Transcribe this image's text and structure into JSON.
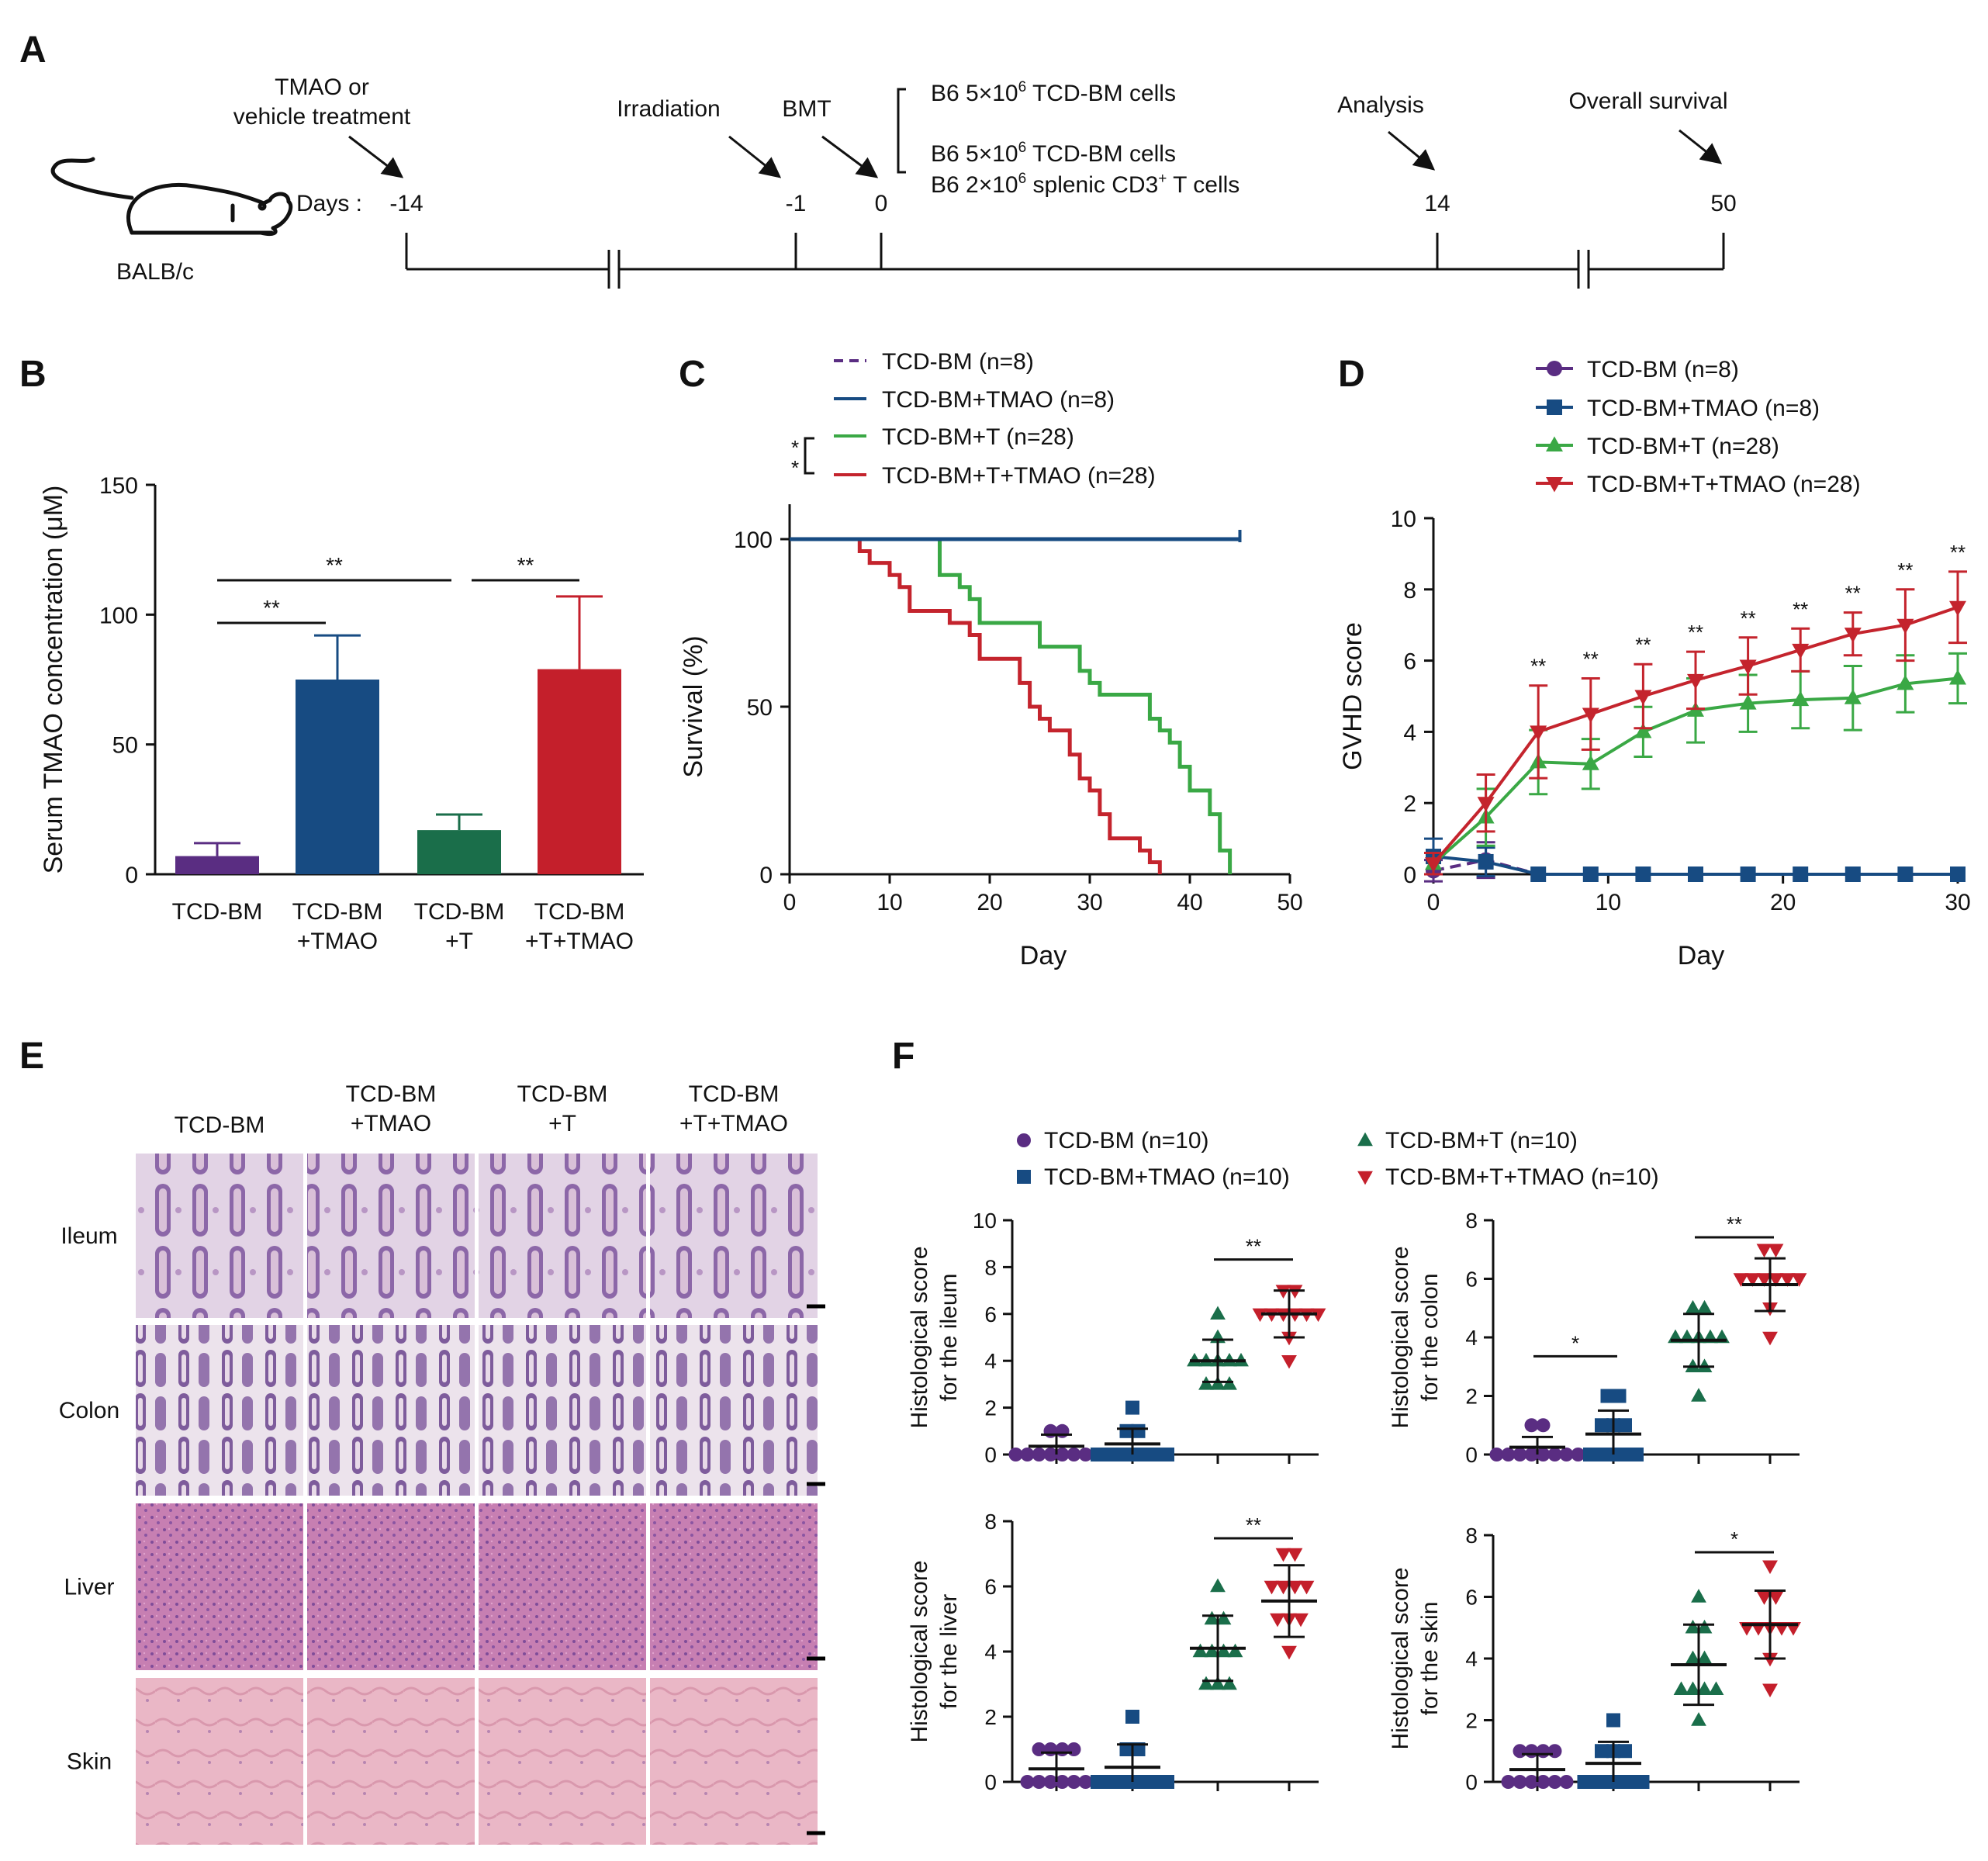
{
  "panels": {
    "A": "A",
    "B": "B",
    "C": "C",
    "D": "D",
    "E": "E",
    "F": "F"
  },
  "timeline": {
    "mouse_label": "BALB/c",
    "days_label": "Days :",
    "ticks": [
      "-14",
      "-1",
      "0",
      "14",
      "50"
    ],
    "ann_tmao_1": "TMAO or",
    "ann_tmao_2": "vehicle treatment",
    "ann_irradiation": "Irradiation",
    "ann_bmt": "BMT",
    "ann_analysis": "Analysis",
    "ann_survival": "Overall survival",
    "b6_line1": {
      "pre": "B6 5×10",
      "sup": "6",
      "post": " TCD-BM cells"
    },
    "b6_line2": {
      "pre": "B6 5×10",
      "sup": "6",
      "post": " TCD-BM cells"
    },
    "b6_line3": {
      "pre": "B6 2×10",
      "sup": "6",
      "mid": " splenic CD3",
      "sup2": "+",
      "post": " T cells"
    }
  },
  "colors": {
    "purple": "#5a2d82",
    "blue": "#174b82",
    "green": "#1a6e4a",
    "red": "#c41f2b",
    "green_light": "#3aa845",
    "red_line": "#c4242d"
  },
  "chart_data": [
    {
      "id": "B",
      "type": "bar",
      "ylabel": "Serum TMAO concentration (μM)",
      "ylim": [
        0,
        150
      ],
      "yticks": [
        0,
        50,
        100,
        150
      ],
      "categories": [
        [
          "TCD-BM"
        ],
        [
          "TCD-BM",
          "+TMAO"
        ],
        [
          "TCD-BM",
          "+T"
        ],
        [
          "TCD-BM",
          "+T+TMAO"
        ]
      ],
      "values": [
        7,
        75,
        17,
        79
      ],
      "errors": [
        5,
        17,
        6,
        28
      ],
      "significance": [
        {
          "from": 0,
          "to": 1,
          "label": "**"
        },
        {
          "from": 0,
          "to": 2,
          "label": "**"
        },
        {
          "from": 2,
          "to": 3,
          "label": "**"
        }
      ]
    },
    {
      "id": "C",
      "type": "line",
      "xlabel": "Day",
      "ylabel": "Survival (%)",
      "xlim": [
        0,
        50
      ],
      "ylim": [
        0,
        100
      ],
      "xticks": [
        0,
        10,
        20,
        30,
        40,
        50
      ],
      "yticks": [
        0,
        50,
        100
      ],
      "significance": "**",
      "series": [
        {
          "name": "TCD-BM (n=8)",
          "style": "dashed",
          "steps": [
            [
              0,
              100
            ],
            [
              45,
              100
            ]
          ]
        },
        {
          "name": "TCD-BM+TMAO (n=8)",
          "style": "solid",
          "steps": [
            [
              0,
              100
            ],
            [
              45,
              100
            ]
          ]
        },
        {
          "name": "TCD-BM+T (n=28)",
          "style": "solid",
          "steps": [
            [
              0,
              100
            ],
            [
              15,
              100
            ],
            [
              15,
              89.3
            ],
            [
              17,
              89.3
            ],
            [
              17,
              85.7
            ],
            [
              18,
              85.7
            ],
            [
              18,
              82.1
            ],
            [
              19,
              82.1
            ],
            [
              19,
              75
            ],
            [
              25,
              75
            ],
            [
              25,
              67.9
            ],
            [
              29,
              67.9
            ],
            [
              29,
              60.7
            ],
            [
              30,
              60.7
            ],
            [
              30,
              57.1
            ],
            [
              31,
              57.1
            ],
            [
              31,
              53.6
            ],
            [
              36,
              53.6
            ],
            [
              36,
              46.4
            ],
            [
              37,
              46.4
            ],
            [
              37,
              42.9
            ],
            [
              38,
              42.9
            ],
            [
              38,
              39.3
            ],
            [
              39,
              39.3
            ],
            [
              39,
              32.1
            ],
            [
              40,
              32.1
            ],
            [
              40,
              25
            ],
            [
              42,
              25
            ],
            [
              42,
              17.9
            ],
            [
              43,
              17.9
            ],
            [
              43,
              7.1
            ],
            [
              44,
              7.1
            ],
            [
              44,
              0
            ]
          ]
        },
        {
          "name": "TCD-BM+T+TMAO (n=28)",
          "style": "solid",
          "steps": [
            [
              0,
              100
            ],
            [
              7,
              100
            ],
            [
              7,
              96.4
            ],
            [
              8,
              96.4
            ],
            [
              8,
              92.9
            ],
            [
              10,
              92.9
            ],
            [
              10,
              89.3
            ],
            [
              11,
              89.3
            ],
            [
              11,
              85.7
            ],
            [
              12,
              85.7
            ],
            [
              12,
              78.6
            ],
            [
              16,
              78.6
            ],
            [
              16,
              75
            ],
            [
              18,
              75
            ],
            [
              18,
              71.4
            ],
            [
              19,
              71.4
            ],
            [
              19,
              64.3
            ],
            [
              23,
              64.3
            ],
            [
              23,
              57.1
            ],
            [
              24,
              57.1
            ],
            [
              24,
              50
            ],
            [
              25,
              50
            ],
            [
              25,
              46.4
            ],
            [
              26,
              46.4
            ],
            [
              26,
              42.9
            ],
            [
              28,
              42.9
            ],
            [
              28,
              35.7
            ],
            [
              29,
              35.7
            ],
            [
              29,
              28.6
            ],
            [
              30,
              28.6
            ],
            [
              30,
              25
            ],
            [
              31,
              25
            ],
            [
              31,
              17.9
            ],
            [
              32,
              17.9
            ],
            [
              32,
              10.7
            ],
            [
              35,
              10.7
            ],
            [
              35,
              7.1
            ],
            [
              36,
              7.1
            ],
            [
              36,
              3.6
            ],
            [
              37,
              3.6
            ],
            [
              37,
              0
            ]
          ]
        }
      ]
    },
    {
      "id": "D",
      "type": "line",
      "xlabel": "Day",
      "ylabel": "GVHD score",
      "xlim": [
        0,
        30
      ],
      "ylim": [
        0,
        10
      ],
      "xticks": [
        0,
        10,
        20,
        30
      ],
      "yticks": [
        0,
        2,
        4,
        6,
        8,
        10
      ],
      "x": [
        0,
        3,
        6,
        9,
        12,
        15,
        18,
        21,
        24,
        27,
        30
      ],
      "significance_label": "**",
      "significance_x": [
        6,
        9,
        12,
        15,
        18,
        21,
        24,
        27,
        30
      ],
      "series": [
        {
          "name": "TCD-BM (n=8)",
          "marker": "circle",
          "values": [
            0.1,
            0.4,
            0,
            0,
            0,
            0,
            0,
            0,
            0,
            0,
            0
          ],
          "errors": [
            0.3,
            0.5,
            0,
            0,
            0,
            0,
            0,
            0,
            0,
            0,
            0
          ]
        },
        {
          "name": "TCD-BM+TMAO (n=8)",
          "marker": "square",
          "values": [
            0.5,
            0.35,
            0,
            0,
            0,
            0,
            0,
            0,
            0,
            0,
            0
          ],
          "errors": [
            0.5,
            0.4,
            0,
            0,
            0,
            0,
            0,
            0,
            0,
            0,
            0
          ]
        },
        {
          "name": "TCD-BM+T (n=28)",
          "marker": "triangle-up",
          "values": [
            0.3,
            1.6,
            3.15,
            3.1,
            4.0,
            4.6,
            4.8,
            4.9,
            4.95,
            5.35,
            5.5
          ],
          "errors": [
            0.3,
            0.8,
            0.9,
            0.7,
            0.7,
            0.9,
            0.8,
            0.8,
            0.9,
            0.8,
            0.7
          ]
        },
        {
          "name": "TCD-BM+T+TMAO (n=28)",
          "marker": "triangle-down",
          "values": [
            0.3,
            2.0,
            4.0,
            4.5,
            5.0,
            5.45,
            5.85,
            6.3,
            6.75,
            7.0,
            7.5
          ],
          "errors": [
            0.3,
            0.8,
            1.3,
            1.0,
            0.9,
            0.8,
            0.8,
            0.6,
            0.6,
            1.0,
            1.0
          ]
        }
      ]
    },
    {
      "id": "F",
      "type": "scatter",
      "legend": [
        "TCD-BM (n=10)",
        "TCD-BM+TMAO (n=10)",
        "TCD-BM+T (n=10)",
        "TCD-BM+T+TMAO (n=10)"
      ],
      "plots": [
        {
          "ylabel": [
            "Histological score",
            "for the ileum"
          ],
          "ylim": [
            0,
            10
          ],
          "yticks": [
            0,
            2,
            4,
            6,
            8,
            10
          ],
          "groups": [
            [
              1,
              1,
              0,
              0,
              0,
              0,
              0,
              0,
              0,
              0
            ],
            [
              2,
              1,
              1,
              0,
              0,
              0,
              0,
              0,
              0,
              0
            ],
            [
              6,
              5,
              4,
              4,
              4,
              4,
              4,
              3,
              3,
              3
            ],
            [
              7,
              7,
              6,
              6,
              6,
              6,
              6,
              6,
              5,
              4
            ]
          ],
          "means": [
            0.35,
            0.45,
            4.0,
            6.0
          ],
          "sds": [
            0.5,
            0.65,
            0.9,
            1.0
          ],
          "significance": [
            {
              "from": 2,
              "to": 3,
              "label": "**"
            }
          ]
        },
        {
          "ylabel": [
            "Histological score",
            "for the colon"
          ],
          "ylim": [
            0,
            8
          ],
          "yticks": [
            0,
            2,
            4,
            6,
            8
          ],
          "groups": [
            [
              1,
              1,
              0,
              0,
              0,
              0,
              0,
              0,
              0,
              0
            ],
            [
              2,
              2,
              1,
              1,
              1,
              0,
              0,
              0,
              0,
              0
            ],
            [
              5,
              5,
              4,
              4,
              4,
              4,
              4,
              3,
              3,
              2
            ],
            [
              7,
              7,
              6,
              6,
              6,
              6,
              6,
              6,
              5,
              4
            ]
          ],
          "means": [
            0.25,
            0.7,
            3.9,
            5.8
          ],
          "sds": [
            0.35,
            0.8,
            0.9,
            0.9
          ],
          "significance": [
            {
              "from": 0,
              "to": 1,
              "label": "*"
            },
            {
              "from": 2,
              "to": 3,
              "label": "**"
            }
          ]
        },
        {
          "ylabel": [
            "Histological score",
            "for the liver"
          ],
          "ylim": [
            0,
            8
          ],
          "yticks": [
            0,
            2,
            4,
            6,
            8
          ],
          "groups": [
            [
              1,
              1,
              1,
              1,
              0,
              0,
              0,
              0,
              0,
              0
            ],
            [
              2,
              1,
              1,
              0,
              0,
              0,
              0,
              0,
              0,
              0
            ],
            [
              6,
              5,
              5,
              4,
              4,
              4,
              4,
              3,
              3,
              3
            ],
            [
              7,
              7,
              6,
              6,
              6,
              6,
              5,
              5,
              5,
              4
            ]
          ],
          "means": [
            0.4,
            0.45,
            4.1,
            5.55
          ],
          "sds": [
            0.5,
            0.7,
            1.0,
            1.1
          ],
          "significance": [
            {
              "from": 2,
              "to": 3,
              "label": "**"
            }
          ]
        },
        {
          "ylabel": [
            "Histological score",
            "for the skin"
          ],
          "ylim": [
            0,
            8
          ],
          "yticks": [
            0,
            2,
            4,
            6,
            8
          ],
          "groups": [
            [
              1,
              1,
              1,
              1,
              0,
              0,
              0,
              0,
              0,
              0
            ],
            [
              2,
              1,
              1,
              1,
              0,
              0,
              0,
              0,
              0,
              0
            ],
            [
              6,
              5,
              5,
              4,
              4,
              3,
              3,
              3,
              3,
              2
            ],
            [
              7,
              6,
              6,
              5,
              5,
              5,
              5,
              5,
              4,
              3
            ]
          ],
          "means": [
            0.4,
            0.6,
            3.8,
            5.1
          ],
          "sds": [
            0.5,
            0.7,
            1.3,
            1.1
          ],
          "significance": [
            {
              "from": 2,
              "to": 3,
              "label": "*"
            }
          ]
        }
      ]
    }
  ],
  "histology": {
    "columns": [
      [
        "TCD-BM"
      ],
      [
        "TCD-BM",
        "+TMAO"
      ],
      [
        "TCD-BM",
        "+T"
      ],
      [
        "TCD-BM",
        "+T+TMAO"
      ]
    ],
    "rows": [
      "Ileum",
      "Colon",
      "Liver",
      "Skin"
    ]
  }
}
